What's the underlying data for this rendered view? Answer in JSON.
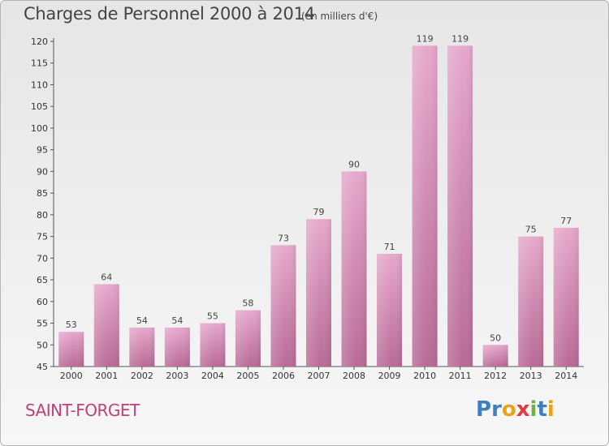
{
  "header": {
    "title": "Charges de Personnel 2000 à 2014",
    "subtitle": "(en milliers d'€)"
  },
  "footer": {
    "commune": "SAINT-FORGET",
    "brand": "Proxiti"
  },
  "colors": {
    "bar_light": "#e6a8cc",
    "bar_dark": "#b86a96",
    "commune": "#c0407a",
    "brand_letters": [
      "#3d7fc4",
      "#3d7fc4",
      "#e8a317",
      "#e33b3b",
      "#6ab344",
      "#3d7fc4",
      "#e8a317"
    ]
  },
  "chart_data": {
    "type": "bar",
    "categories": [
      "2000",
      "2001",
      "2002",
      "2003",
      "2004",
      "2005",
      "2006",
      "2007",
      "2008",
      "2009",
      "2010",
      "2011",
      "2012",
      "2013",
      "2014"
    ],
    "values": [
      53,
      64,
      54,
      54,
      55,
      58,
      73,
      79,
      90,
      71,
      119,
      119,
      50,
      75,
      77
    ],
    "ylim": [
      45,
      120
    ],
    "ytick_step": 5,
    "grid": false,
    "data_labels": true
  }
}
